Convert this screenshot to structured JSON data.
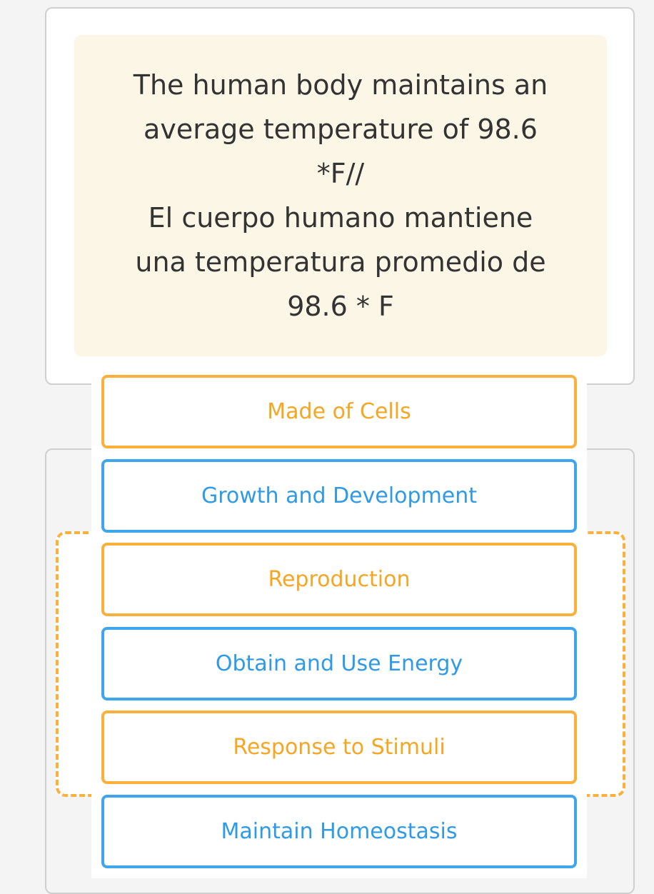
{
  "prompt": {
    "lines": [
      "The human body maintains an",
      "average temperature of 98.6",
      "*F//",
      "El cuerpo humano mantiene",
      "una temperatura promedio de",
      "98.6 * F"
    ]
  },
  "items": [
    {
      "label": "Made of Cells",
      "color": "#fbb03b"
    },
    {
      "label": "Growth and Development",
      "color": "#3ea6ec"
    },
    {
      "label": "Reproduction",
      "color": "#fbb03b"
    },
    {
      "label": "Obtain and Use Energy",
      "color": "#3ea6ec"
    },
    {
      "label": "Response to Stimuli",
      "color": "#fbb03b"
    },
    {
      "label": "Maintain Homeostasis",
      "color": "#3ea6ec"
    }
  ]
}
